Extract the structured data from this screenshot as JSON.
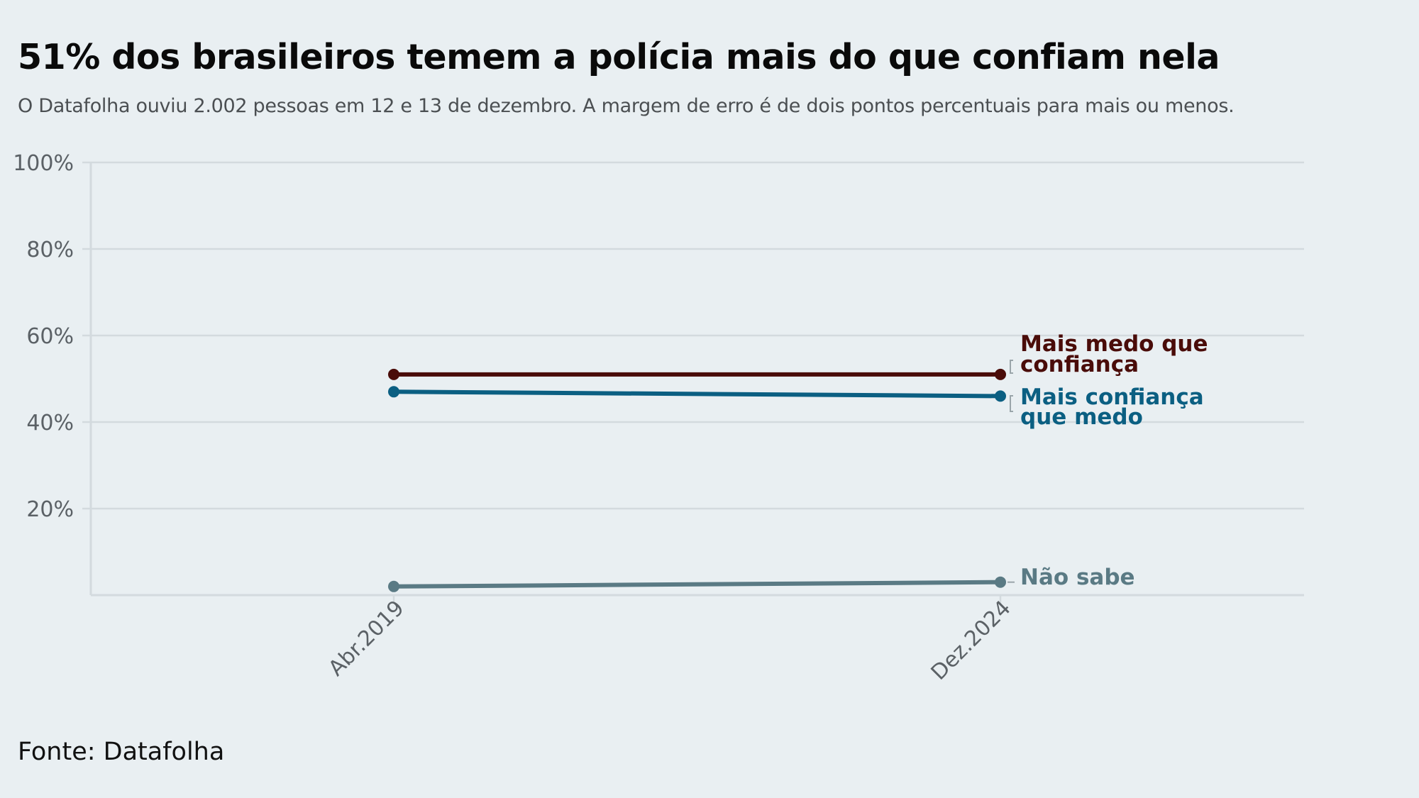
{
  "title": "51% dos brasileiros temem a polícia mais do que confiam nela",
  "subtitle": "O Datafolha ouviu 2.002 pessoas em 12 e 13 de dezembro. A margem de erro é de dois pontos percentuais para mais ou menos.",
  "source": "Fonte: Datafolha",
  "colors": {
    "background": "#e9eff2",
    "grid": "#d3dade",
    "mais_medo": "#4a0c09",
    "mais_confianca": "#0b5f82",
    "nao_sabe": "#5a7a84"
  },
  "chart_data": {
    "type": "line",
    "title": "51% dos brasileiros temem a polícia mais do que confiam nela",
    "x": [
      "Abr.2019",
      "Dez.2024"
    ],
    "ylim": [
      0,
      100
    ],
    "yticks": [
      20,
      40,
      60,
      80,
      100
    ],
    "ytick_labels": [
      "20%",
      "40%",
      "60%",
      "80%",
      "100%"
    ],
    "grid": true,
    "legend": "direct labels at line ends (right)",
    "series": [
      {
        "name": "Mais medo que confiança",
        "label_lines": [
          "Mais medo que",
          "confiança"
        ],
        "values": [
          51,
          51
        ],
        "color": "#4a0c09"
      },
      {
        "name": "Mais confiança que medo",
        "label_lines": [
          "Mais confiança",
          "que medo"
        ],
        "values": [
          47,
          46
        ],
        "color": "#0b5f82"
      },
      {
        "name": "Não sabe",
        "label_lines": [
          "Não sabe"
        ],
        "values": [
          2,
          3
        ],
        "color": "#5a7a84"
      }
    ]
  }
}
